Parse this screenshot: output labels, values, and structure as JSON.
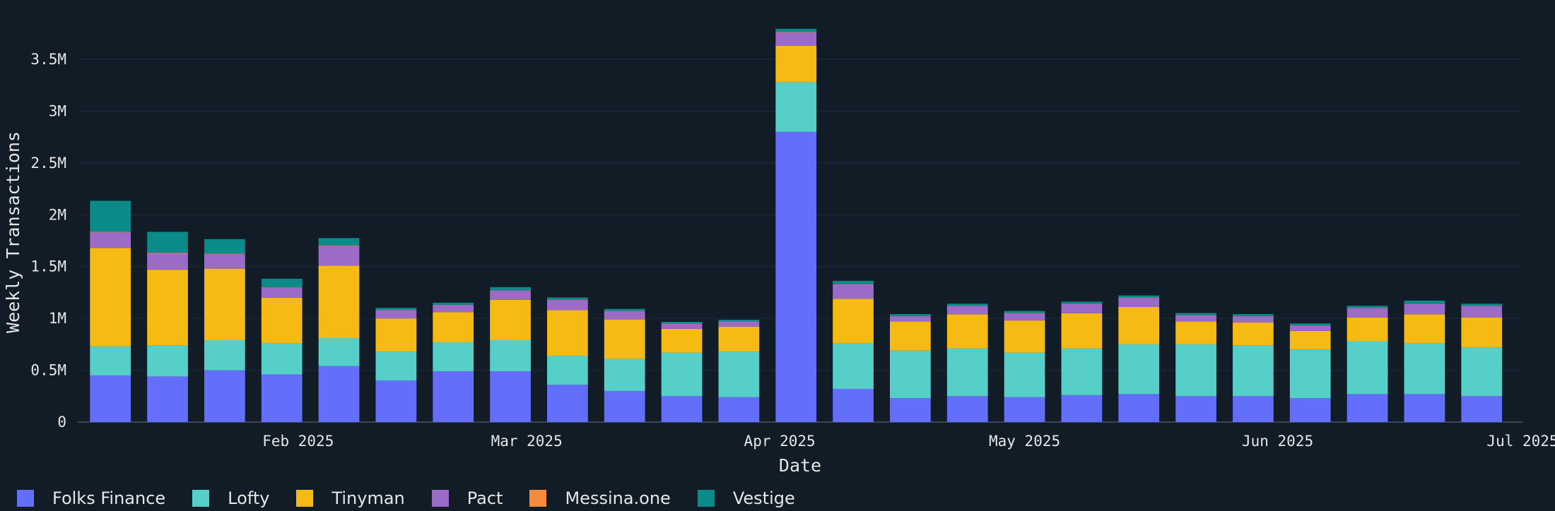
{
  "chart_data": {
    "type": "bar",
    "stacked": true,
    "title": "",
    "xlabel": "Date",
    "ylabel": "Weekly Transactions",
    "ylim": [
      0,
      3800000
    ],
    "yticks": [
      {
        "value": 0,
        "label": "0"
      },
      {
        "value": 500000,
        "label": "0.5M"
      },
      {
        "value": 1000000,
        "label": "1M"
      },
      {
        "value": 1500000,
        "label": "1.5M"
      },
      {
        "value": 2000000,
        "label": "2M"
      },
      {
        "value": 2500000,
        "label": "2.5M"
      },
      {
        "value": 3000000,
        "label": "3M"
      },
      {
        "value": 3500000,
        "label": "3.5M"
      }
    ],
    "xticks": [
      {
        "date": "2025-02-01",
        "label": "Feb 2025"
      },
      {
        "date": "2025-03-01",
        "label": "Mar 2025"
      },
      {
        "date": "2025-04-01",
        "label": "Apr 2025"
      },
      {
        "date": "2025-05-01",
        "label": "May 2025"
      },
      {
        "date": "2025-06-01",
        "label": "Jun 2025"
      },
      {
        "date": "2025-07-01",
        "label": "Jul 2025"
      }
    ],
    "xlim": [
      "2025-01-05",
      "2025-07-01"
    ],
    "legend_position": "bottom",
    "categories": [
      "2025-01-09",
      "2025-01-16",
      "2025-01-23",
      "2025-01-30",
      "2025-02-06",
      "2025-02-13",
      "2025-02-20",
      "2025-02-27",
      "2025-03-06",
      "2025-03-13",
      "2025-03-20",
      "2025-03-27",
      "2025-04-03",
      "2025-04-10",
      "2025-04-17",
      "2025-04-24",
      "2025-05-01",
      "2025-05-08",
      "2025-05-15",
      "2025-05-22",
      "2025-05-29",
      "2025-06-05",
      "2025-06-12",
      "2025-06-19",
      "2025-06-26"
    ],
    "series": [
      {
        "name": "Folks Finance",
        "color": "#636efa",
        "values": [
          450000,
          440000,
          500000,
          460000,
          540000,
          400000,
          490000,
          490000,
          360000,
          300000,
          250000,
          240000,
          2800000,
          320000,
          230000,
          250000,
          240000,
          260000,
          270000,
          250000,
          250000,
          230000,
          270000,
          270000,
          250000
        ]
      },
      {
        "name": "Lofty",
        "color": "#56cfc8",
        "values": [
          280000,
          300000,
          290000,
          300000,
          270000,
          280000,
          280000,
          300000,
          280000,
          310000,
          420000,
          440000,
          480000,
          440000,
          460000,
          460000,
          430000,
          450000,
          480000,
          500000,
          490000,
          470000,
          510000,
          490000,
          470000
        ]
      },
      {
        "name": "Tinyman",
        "color": "#f5bb14",
        "values": [
          950000,
          730000,
          690000,
          440000,
          700000,
          320000,
          290000,
          390000,
          440000,
          380000,
          230000,
          240000,
          350000,
          430000,
          280000,
          330000,
          310000,
          340000,
          360000,
          220000,
          220000,
          180000,
          230000,
          280000,
          290000
        ]
      },
      {
        "name": "Pact",
        "color": "#9c6bc7",
        "values": [
          150000,
          160000,
          140000,
          100000,
          190000,
          80000,
          70000,
          90000,
          100000,
          80000,
          50000,
          50000,
          130000,
          140000,
          50000,
          80000,
          70000,
          90000,
          90000,
          60000,
          60000,
          50000,
          90000,
          100000,
          110000
        ]
      },
      {
        "name": "Messina.one",
        "color": "#f58c3c",
        "values": [
          5000,
          5000,
          5000,
          3000,
          5000,
          2000,
          2000,
          2000,
          2000,
          2000,
          2000,
          2000,
          5000,
          3000,
          2000,
          2000,
          2000,
          2000,
          2000,
          2000,
          2000,
          2000,
          2000,
          2000,
          2000
        ]
      },
      {
        "name": "Vestige",
        "color": "#0b8a8a",
        "values": [
          300000,
          200000,
          140000,
          80000,
          70000,
          20000,
          20000,
          30000,
          20000,
          20000,
          15000,
          15000,
          30000,
          30000,
          20000,
          20000,
          20000,
          20000,
          20000,
          20000,
          20000,
          20000,
          20000,
          30000,
          20000
        ]
      }
    ]
  }
}
